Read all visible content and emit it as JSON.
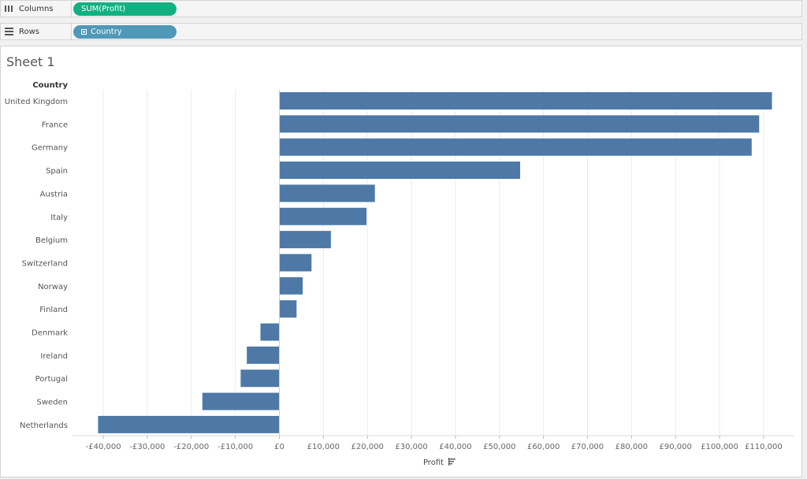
{
  "shelves": {
    "columns": {
      "label": "Columns",
      "pill": "SUM(Profit)"
    },
    "rows": {
      "label": "Rows",
      "pill": "Country"
    }
  },
  "sheet": {
    "title": "Sheet 1"
  },
  "colors": {
    "bar": "#4e79a7",
    "columns_pill": "#12b081",
    "rows_pill": "#4f98b8"
  },
  "chart_data": {
    "type": "bar",
    "orientation": "horizontal",
    "row_header": "Country",
    "xlabel": "Profit",
    "categories": [
      "United Kingdom",
      "France",
      "Germany",
      "Spain",
      "Austria",
      "Italy",
      "Belgium",
      "Switzerland",
      "Norway",
      "Finland",
      "Denmark",
      "Ireland",
      "Portugal",
      "Sweden",
      "Netherlands"
    ],
    "values": [
      111900,
      109000,
      107300,
      54700,
      21700,
      19800,
      11700,
      7300,
      5300,
      3900,
      -4300,
      -7400,
      -8800,
      -17500,
      -41200
    ],
    "xlim": [
      -47000,
      117000
    ],
    "ticks": [
      -40000,
      -30000,
      -20000,
      -10000,
      0,
      10000,
      20000,
      30000,
      40000,
      50000,
      60000,
      70000,
      80000,
      90000,
      100000,
      110000
    ],
    "tick_labels": [
      "-£40,000",
      "-£30,000",
      "-£20,000",
      "-£10,000",
      "£0",
      "£10,000",
      "£20,000",
      "£30,000",
      "£40,000",
      "£50,000",
      "£60,000",
      "£70,000",
      "£80,000",
      "£90,000",
      "£100,000",
      "£110,000"
    ],
    "grid": true
  }
}
